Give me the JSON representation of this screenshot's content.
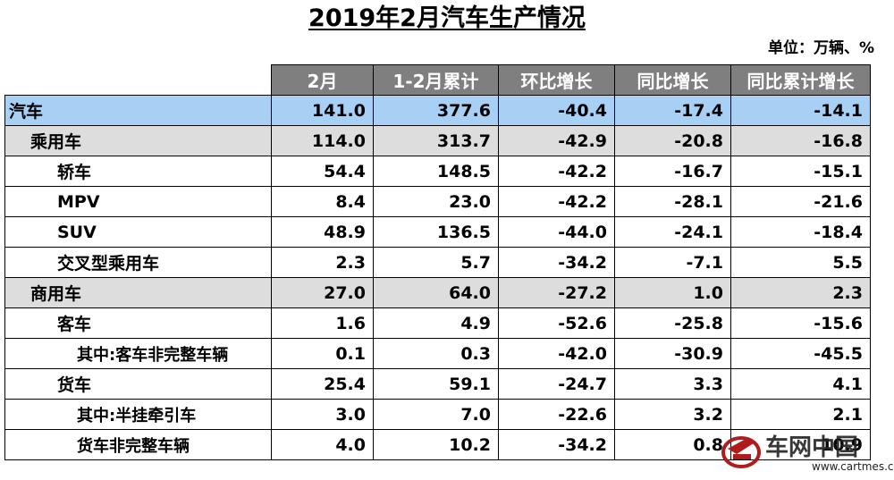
{
  "title": "2019年2月汽车生产情况",
  "unit": "单位：万辆、%",
  "headers": [
    "",
    "2月",
    "1-2月累计",
    "环比增长",
    "同比增长",
    "同比累计增长"
  ],
  "rows": [
    {
      "level": 0,
      "cells": [
        "汽车",
        "141.0",
        "377.6",
        "-40.4",
        "-17.4",
        "-14.1"
      ]
    },
    {
      "level": 1,
      "cells": [
        "乘用车",
        "114.0",
        "313.7",
        "-42.9",
        "-20.8",
        "-16.8"
      ]
    },
    {
      "level": 2,
      "cells": [
        "轿车",
        "54.4",
        "148.5",
        "-42.2",
        "-16.7",
        "-15.1"
      ]
    },
    {
      "level": 2,
      "cells": [
        "MPV",
        "8.4",
        "23.0",
        "-42.2",
        "-28.1",
        "-21.6"
      ]
    },
    {
      "level": 2,
      "cells": [
        "SUV",
        "48.9",
        "136.5",
        "-44.0",
        "-24.1",
        "-18.4"
      ]
    },
    {
      "level": 2,
      "cells": [
        "交叉型乘用车",
        "2.3",
        "5.7",
        "-34.2",
        "-7.1",
        "5.5"
      ]
    },
    {
      "level": 1,
      "cells": [
        "商用车",
        "27.0",
        "64.0",
        "-27.2",
        "1.0",
        "2.3"
      ]
    },
    {
      "level": 3,
      "cells": [
        "客车",
        "1.6",
        "4.9",
        "-52.6",
        "-25.8",
        "-15.6"
      ]
    },
    {
      "level": 4,
      "cells": [
        "其中:客车非完整车辆",
        "0.1",
        "0.3",
        "-42.0",
        "-30.9",
        "-45.5"
      ]
    },
    {
      "level": 3,
      "cells": [
        "货车",
        "25.4",
        "59.1",
        "-24.7",
        "3.3",
        "4.1"
      ]
    },
    {
      "level": 4,
      "cells": [
        "其中:半挂牵引车",
        "3.0",
        "7.0",
        "-22.6",
        "3.2",
        "2.1"
      ]
    },
    {
      "level": 4,
      "cells": [
        "货车非完整车辆",
        "4.0",
        "10.2",
        "-34.2",
        "0.8",
        "10.9"
      ]
    }
  ],
  "watermark": {
    "text": "车网中国",
    "url": "www.cartmes.cn"
  },
  "colors": {
    "header_bg": "#7f7f7f",
    "total_row_bg": "#a8d0f5",
    "category_row_bg": "#dddddd"
  }
}
